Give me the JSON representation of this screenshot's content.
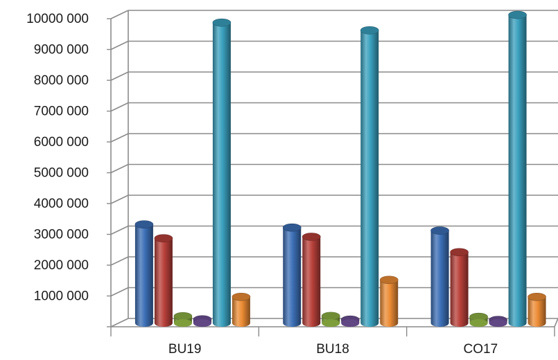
{
  "chart_data": {
    "type": "bar",
    "style": "3d-cylinder",
    "categories": [
      "BU19",
      "BU18",
      "CO17"
    ],
    "series": [
      {
        "color": "#3c6fb6",
        "values": [
          3200000,
          3100000,
          3000000
        ]
      },
      {
        "color": "#b8403a",
        "values": [
          2750000,
          2800000,
          2300000
        ]
      },
      {
        "color": "#8cb043",
        "values": [
          220000,
          230000,
          200000
        ]
      },
      {
        "color": "#6c4f93",
        "values": [
          120000,
          110000,
          100000
        ]
      },
      {
        "color": "#3aa0be",
        "values": [
          9750000,
          9500000,
          10000000
        ]
      },
      {
        "color": "#ec8c35",
        "values": [
          850000,
          1400000,
          850000
        ]
      }
    ],
    "yticks": [
      "",
      "1000 000",
      "2000 000",
      "3000 000",
      "4000 000",
      "5000 000",
      "6000 000",
      "7000 000",
      "8000 000",
      "9000 000",
      "10000 000"
    ],
    "ylim": [
      0,
      10000000
    ],
    "grid": true,
    "legend": "none",
    "title": "",
    "xlabel": "",
    "ylabel": ""
  }
}
